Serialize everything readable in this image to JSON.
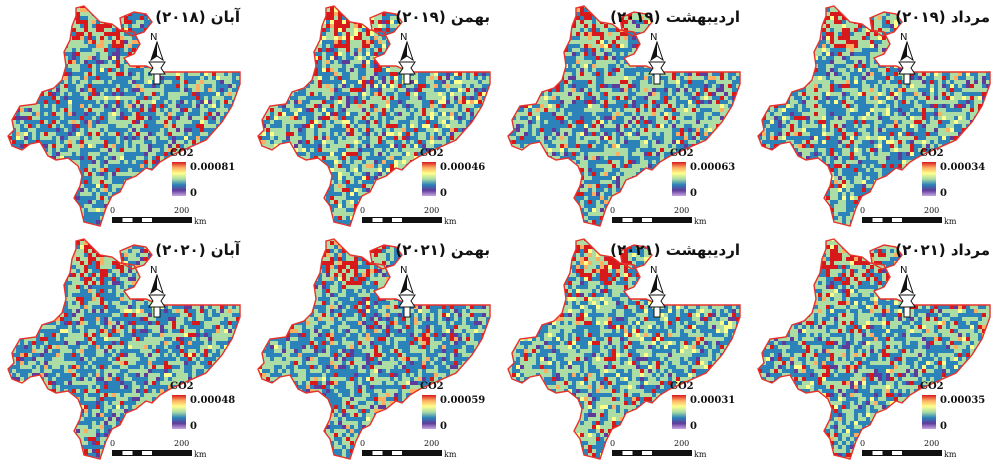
{
  "panels": [
    {
      "title": "آبان (۲۰۱۸)",
      "legend_title": "CO2",
      "legend_max": "0.00081",
      "legend_min": "0",
      "scale_zero": "0",
      "scale_max": "200",
      "scale_unit": "km",
      "seed": 11,
      "intensity": 0.42
    },
    {
      "title": "بهمن (۲۰۱۹)",
      "legend_title": "CO2",
      "legend_max": "0.00046",
      "legend_min": "0",
      "scale_zero": "0",
      "scale_max": "200",
      "scale_unit": "km",
      "seed": 23,
      "intensity": 0.62
    },
    {
      "title": "اردیبهشت (۲۰۱۹)",
      "legend_title": "CO2",
      "legend_max": "0.00063",
      "legend_min": "0",
      "scale_zero": "0",
      "scale_max": "200",
      "scale_unit": "km",
      "seed": 37,
      "intensity": 0.45
    },
    {
      "title": "مرداد (۲۰۱۹)",
      "legend_title": "CO2",
      "legend_max": "0.00034",
      "legend_min": "0",
      "scale_zero": "0",
      "scale_max": "200",
      "scale_unit": "km",
      "seed": 41,
      "intensity": 0.55
    },
    {
      "title": "آبان (۲۰۲۰)",
      "legend_title": "CO2",
      "legend_max": "0.00048",
      "legend_min": "0",
      "scale_zero": "0",
      "scale_max": "200",
      "scale_unit": "km",
      "seed": 53,
      "intensity": 0.4
    },
    {
      "title": "بهمن (۲۰۲۱)",
      "legend_title": "CO2",
      "legend_max": "0.00059",
      "legend_min": "0",
      "scale_zero": "0",
      "scale_max": "200",
      "scale_unit": "km",
      "seed": 67,
      "intensity": 0.38
    },
    {
      "title": "اردیبهشت (۲۰۲۱)",
      "legend_title": "CO2",
      "legend_max": "0.00031",
      "legend_min": "0",
      "scale_zero": "0",
      "scale_max": "200",
      "scale_unit": "km",
      "seed": 79,
      "intensity": 0.58
    },
    {
      "title": "مرداد (۲۰۲۱)",
      "legend_title": "CO2",
      "legend_max": "0.00035",
      "legend_min": "0",
      "scale_zero": "0",
      "scale_max": "200",
      "scale_unit": "km",
      "seed": 83,
      "intensity": 0.52
    }
  ],
  "colors": {
    "boundary": "#e8312a",
    "low": "#5e3c99",
    "mid_low": "#2b83ba",
    "mid": "#abdda4",
    "mid_high": "#ffff8c",
    "high": "#fdae61",
    "max": "#d7191c"
  },
  "icons": {
    "north_arrow": "north-arrow-icon"
  }
}
